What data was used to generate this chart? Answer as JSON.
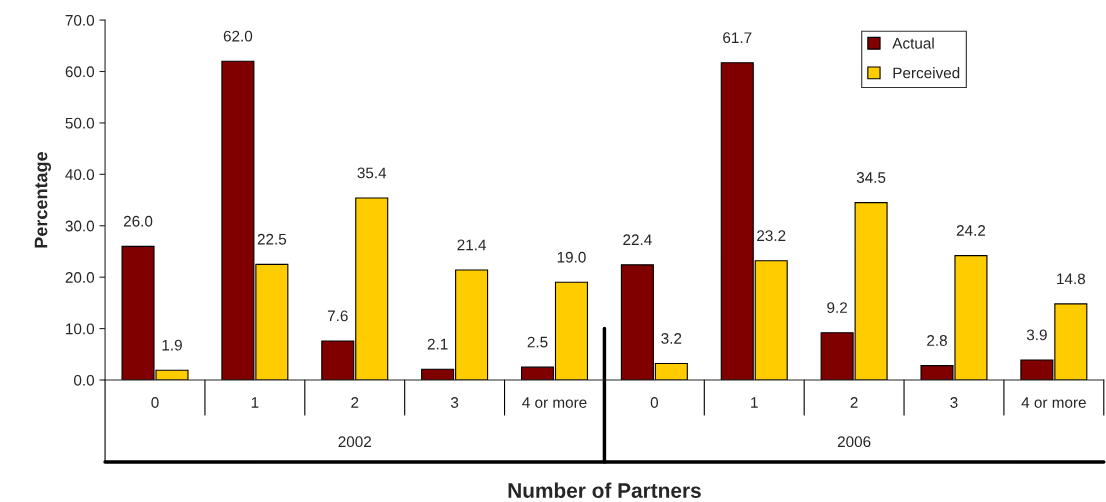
{
  "chart_data": {
    "type": "bar",
    "xlabel": "Number of Partners",
    "ylabel": "Percentage",
    "categories": [
      "0",
      "1",
      "2",
      "3",
      "4 or more",
      "0",
      "1",
      "2",
      "3",
      "4 or more"
    ],
    "series": [
      {
        "name": "Actual",
        "color": "#800000",
        "values": [
          26.0,
          62.0,
          7.6,
          2.1,
          2.5,
          22.4,
          61.7,
          9.2,
          2.8,
          3.9
        ],
        "value_labels": [
          "26.0",
          "62.0",
          "7.6",
          "2.1",
          "2.5",
          "22.4",
          "61.7",
          "9.2",
          "2.8",
          "3.9"
        ]
      },
      {
        "name": "Perceived",
        "color": "#ffcc00",
        "values": [
          1.9,
          22.5,
          35.4,
          21.4,
          19.0,
          3.2,
          23.2,
          34.5,
          24.2,
          14.8
        ],
        "value_labels": [
          "1.9",
          "22.5",
          "35.4",
          "21.4",
          "19.0",
          "3.2",
          "23.2",
          "34.5",
          "24.2",
          "14.8"
        ]
      }
    ],
    "annotations": [
      "2002",
      "2006"
    ],
    "ylim": [
      0,
      70
    ],
    "yticks": [
      {
        "value": 0,
        "label": "0.0"
      },
      {
        "value": 10,
        "label": "10.0"
      },
      {
        "value": 20,
        "label": "20.0"
      },
      {
        "value": 30,
        "label": "30.0"
      },
      {
        "value": 40,
        "label": "40.0"
      },
      {
        "value": 50,
        "label": "50.0"
      },
      {
        "value": 60,
        "label": "60.0"
      },
      {
        "value": 70,
        "label": "70.0"
      }
    ],
    "grid": false,
    "legend": "top right"
  }
}
